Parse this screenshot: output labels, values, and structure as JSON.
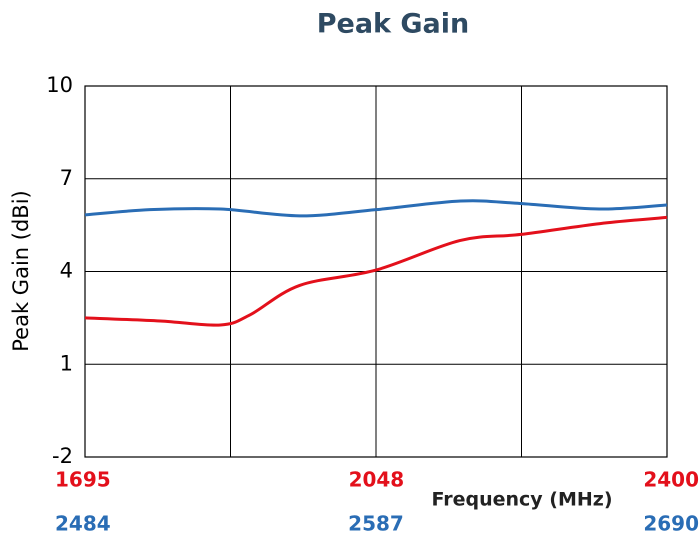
{
  "chart_data": {
    "type": "line",
    "title": "Peak Gain",
    "ylabel": "Peak Gain (dBi)",
    "xlabel": "Frequency (MHz)",
    "ylim": [
      -2,
      10
    ],
    "yticks": [
      -2,
      1,
      4,
      7,
      10
    ],
    "xlim": [
      1695,
      2400
    ],
    "xticks": [
      1695,
      2048,
      2400
    ],
    "xcolor": "#e3101b",
    "x2lim": [
      2484,
      2690
    ],
    "x2ticks": [
      2484,
      2587,
      2690
    ],
    "x2color": "#2a6db5",
    "grid": true,
    "series": [
      {
        "color": "#2a6db5",
        "axis": "x2",
        "x": [
          2484,
          2507,
          2532,
          2560,
          2587,
          2617,
          2638,
          2666,
          2690
        ],
        "values": [
          5.83,
          6.0,
          6.02,
          5.8,
          6.0,
          6.28,
          6.2,
          6.02,
          6.15
        ]
      },
      {
        "color": "#e3101b",
        "axis": "x",
        "x": [
          1695,
          1786,
          1859,
          1895,
          1955,
          2048,
          2149,
          2223,
          2319,
          2400
        ],
        "values": [
          2.5,
          2.4,
          2.27,
          2.6,
          3.55,
          4.05,
          5.0,
          5.2,
          5.55,
          5.75
        ]
      }
    ]
  }
}
